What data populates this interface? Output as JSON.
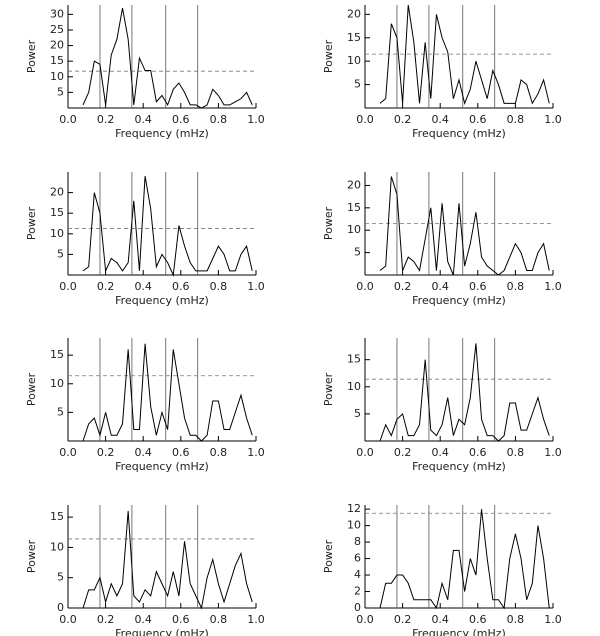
{
  "chart_data": [
    {
      "type": "line",
      "x_label": "Frequency (mHz)",
      "y_label": "Power",
      "color": "#000000",
      "x": [
        0.08,
        0.11,
        0.14,
        0.17,
        0.2,
        0.23,
        0.26,
        0.29,
        0.32,
        0.35,
        0.38,
        0.41,
        0.44,
        0.47,
        0.5,
        0.53,
        0.56,
        0.59,
        0.62,
        0.65,
        0.68,
        0.71,
        0.74,
        0.77,
        0.8,
        0.83,
        0.86,
        0.89,
        0.92,
        0.95,
        0.98
      ],
      "values": [
        1,
        5,
        15,
        14,
        1,
        17,
        22,
        32,
        22,
        1,
        16,
        12,
        12,
        2,
        4,
        1,
        6,
        8,
        5,
        1,
        1,
        0,
        1,
        6,
        4,
        1,
        1,
        2,
        3,
        5,
        1
      ],
      "xlim": [
        0,
        1
      ],
      "xticks": [
        {
          "value": 0,
          "label": "0.0"
        },
        {
          "value": 0.2,
          "label": "0.2"
        },
        {
          "value": 0.4,
          "label": "0.4"
        },
        {
          "value": 0.6,
          "label": "0.6"
        },
        {
          "value": 0.8,
          "label": "0.8"
        },
        {
          "value": 1,
          "label": "1.0"
        }
      ],
      "ylim": [
        0,
        33
      ],
      "yticks": [
        5,
        10,
        15,
        20,
        25,
        30
      ],
      "vlines": [
        0.17,
        0.34,
        0.52,
        0.69
      ],
      "hline": 11.8
    },
    {
      "type": "line",
      "x_label": "Frequency (mHz)",
      "y_label": "Power",
      "color": "#000000",
      "x": [
        0.08,
        0.11,
        0.14,
        0.17,
        0.2,
        0.23,
        0.26,
        0.29,
        0.32,
        0.35,
        0.38,
        0.41,
        0.44,
        0.47,
        0.5,
        0.53,
        0.56,
        0.59,
        0.62,
        0.65,
        0.68,
        0.71,
        0.74,
        0.77,
        0.8,
        0.83,
        0.86,
        0.89,
        0.92,
        0.95,
        0.98
      ],
      "values": [
        1,
        2,
        18,
        15,
        1,
        22,
        14,
        1,
        14,
        2,
        20,
        15,
        12,
        2,
        6,
        1,
        4,
        10,
        6,
        2,
        8,
        5,
        1,
        1,
        1,
        6,
        5,
        1,
        3,
        6,
        1
      ],
      "xlim": [
        0,
        1
      ],
      "xticks": [
        {
          "value": 0,
          "label": "0.0"
        },
        {
          "value": 0.2,
          "label": "0.2"
        },
        {
          "value": 0.4,
          "label": "0.4"
        },
        {
          "value": 0.6,
          "label": "0.6"
        },
        {
          "value": 0.8,
          "label": "0.8"
        },
        {
          "value": 1,
          "label": "1.0"
        }
      ],
      "ylim": [
        0,
        22
      ],
      "yticks": [
        5,
        10,
        15,
        20
      ],
      "vlines": [
        0.17,
        0.34,
        0.52,
        0.69
      ],
      "hline": 11.5
    },
    {
      "type": "line",
      "x_label": "Frequency (mHz)",
      "y_label": "Power",
      "color": "#000000",
      "x": [
        0.08,
        0.11,
        0.14,
        0.17,
        0.2,
        0.23,
        0.26,
        0.29,
        0.32,
        0.35,
        0.38,
        0.41,
        0.44,
        0.47,
        0.5,
        0.53,
        0.56,
        0.59,
        0.62,
        0.65,
        0.68,
        0.71,
        0.74,
        0.77,
        0.8,
        0.83,
        0.86,
        0.89,
        0.92,
        0.95,
        0.98
      ],
      "values": [
        1,
        2,
        20,
        15,
        1,
        4,
        3,
        1,
        3,
        18,
        1,
        24,
        16,
        2,
        5,
        3,
        0,
        12,
        7,
        3,
        1,
        1,
        1,
        4,
        7,
        5,
        1,
        1,
        5,
        7,
        1
      ],
      "xlim": [
        0,
        1
      ],
      "xticks": [
        {
          "value": 0,
          "label": "0.0"
        },
        {
          "value": 0.2,
          "label": "0.2"
        },
        {
          "value": 0.4,
          "label": "0.4"
        },
        {
          "value": 0.6,
          "label": "0.6"
        },
        {
          "value": 0.8,
          "label": "0.8"
        },
        {
          "value": 1,
          "label": "1.0"
        }
      ],
      "ylim": [
        0,
        25
      ],
      "yticks": [
        5,
        10,
        15,
        20
      ],
      "vlines": [
        0.17,
        0.34,
        0.52,
        0.69
      ],
      "hline": 11.3
    },
    {
      "type": "line",
      "x_label": "Frequency (mHz)",
      "y_label": "Power",
      "color": "#000000",
      "x": [
        0.08,
        0.11,
        0.14,
        0.17,
        0.2,
        0.23,
        0.26,
        0.29,
        0.32,
        0.35,
        0.38,
        0.41,
        0.44,
        0.47,
        0.5,
        0.53,
        0.56,
        0.59,
        0.62,
        0.65,
        0.68,
        0.71,
        0.74,
        0.77,
        0.8,
        0.83,
        0.86,
        0.89,
        0.92,
        0.95,
        0.98
      ],
      "values": [
        1,
        2,
        22,
        18,
        1,
        4,
        3,
        1,
        8,
        15,
        1,
        16,
        3,
        0,
        16,
        2,
        7,
        14,
        4,
        2,
        1,
        0,
        1,
        4,
        7,
        5,
        1,
        1,
        5,
        7,
        1
      ],
      "xlim": [
        0,
        1
      ],
      "xticks": [
        {
          "value": 0,
          "label": "0.0"
        },
        {
          "value": 0.2,
          "label": "0.2"
        },
        {
          "value": 0.4,
          "label": "0.4"
        },
        {
          "value": 0.6,
          "label": "0.6"
        },
        {
          "value": 0.8,
          "label": "0.8"
        },
        {
          "value": 1,
          "label": "1.0"
        }
      ],
      "ylim": [
        0,
        23
      ],
      "yticks": [
        5,
        10,
        15,
        20
      ],
      "vlines": [
        0.17,
        0.34,
        0.52,
        0.69
      ],
      "hline": 11.5
    },
    {
      "type": "line",
      "x_label": "Frequency (mHz)",
      "y_label": "Power",
      "color": "#000000",
      "x": [
        0.08,
        0.11,
        0.14,
        0.17,
        0.2,
        0.23,
        0.26,
        0.29,
        0.32,
        0.35,
        0.38,
        0.41,
        0.44,
        0.47,
        0.5,
        0.53,
        0.56,
        0.59,
        0.62,
        0.65,
        0.68,
        0.71,
        0.74,
        0.77,
        0.8,
        0.83,
        0.86,
        0.89,
        0.92,
        0.95,
        0.98
      ],
      "values": [
        0,
        3,
        4,
        1,
        5,
        1,
        1,
        3,
        16,
        2,
        2,
        17,
        6,
        1,
        5,
        2,
        16,
        10,
        4,
        1,
        1,
        0,
        1,
        7,
        7,
        2,
        2,
        5,
        8,
        4,
        1
      ],
      "xlim": [
        0,
        1
      ],
      "xticks": [
        {
          "value": 0,
          "label": "0.0"
        },
        {
          "value": 0.2,
          "label": "0.2"
        },
        {
          "value": 0.4,
          "label": "0.4"
        },
        {
          "value": 0.6,
          "label": "0.6"
        },
        {
          "value": 0.8,
          "label": "0.8"
        },
        {
          "value": 1,
          "label": "1.0"
        }
      ],
      "ylim": [
        0,
        18
      ],
      "yticks": [
        5,
        10,
        15
      ],
      "vlines": [
        0.17,
        0.34,
        0.52,
        0.69
      ],
      "hline": 11.4
    },
    {
      "type": "line",
      "x_label": "Frequency (mHz)",
      "y_label": "Power",
      "color": "#000000",
      "x": [
        0.08,
        0.11,
        0.14,
        0.17,
        0.2,
        0.23,
        0.26,
        0.29,
        0.32,
        0.35,
        0.38,
        0.41,
        0.44,
        0.47,
        0.5,
        0.53,
        0.56,
        0.59,
        0.62,
        0.65,
        0.68,
        0.71,
        0.74,
        0.77,
        0.8,
        0.83,
        0.86,
        0.89,
        0.92,
        0.95,
        0.98
      ],
      "values": [
        0,
        3,
        1,
        4,
        5,
        1,
        1,
        3,
        15,
        2,
        1,
        3,
        8,
        1,
        4,
        3,
        8,
        18,
        4,
        1,
        1,
        0,
        1,
        7,
        7,
        2,
        2,
        5,
        8,
        4,
        1
      ],
      "xlim": [
        0,
        1
      ],
      "xticks": [
        {
          "value": 0,
          "label": "0.0"
        },
        {
          "value": 0.2,
          "label": "0.2"
        },
        {
          "value": 0.4,
          "label": "0.4"
        },
        {
          "value": 0.6,
          "label": "0.6"
        },
        {
          "value": 0.8,
          "label": "0.8"
        },
        {
          "value": 1,
          "label": "1.0"
        }
      ],
      "ylim": [
        0,
        19
      ],
      "yticks": [
        5,
        10,
        15
      ],
      "vlines": [
        0.17,
        0.34,
        0.52,
        0.69
      ],
      "hline": 11.4
    },
    {
      "type": "line",
      "x_label": "Frequency (mHz)",
      "y_label": "Power",
      "color": "#000000",
      "x": [
        0.08,
        0.11,
        0.14,
        0.17,
        0.2,
        0.23,
        0.26,
        0.29,
        0.32,
        0.35,
        0.38,
        0.41,
        0.44,
        0.47,
        0.5,
        0.53,
        0.56,
        0.59,
        0.62,
        0.65,
        0.68,
        0.71,
        0.74,
        0.77,
        0.8,
        0.83,
        0.86,
        0.89,
        0.92,
        0.95,
        0.98
      ],
      "values": [
        0,
        3,
        3,
        5,
        1,
        4,
        2,
        4,
        16,
        2,
        1,
        3,
        2,
        6,
        4,
        2,
        6,
        2,
        11,
        4,
        2,
        0,
        5,
        8,
        4,
        1,
        4,
        7,
        9,
        4,
        1
      ],
      "xlim": [
        0,
        1
      ],
      "xticks": [
        {
          "value": 0,
          "label": "0.0"
        },
        {
          "value": 0.2,
          "label": "0.2"
        },
        {
          "value": 0.4,
          "label": "0.4"
        },
        {
          "value": 0.6,
          "label": "0.6"
        },
        {
          "value": 0.8,
          "label": "0.8"
        },
        {
          "value": 1,
          "label": "1.0"
        }
      ],
      "ylim": [
        0,
        17
      ],
      "yticks": [
        0,
        5,
        10,
        15
      ],
      "vlines": [
        0.17,
        0.34,
        0.52,
        0.69
      ],
      "hline": 11.4
    },
    {
      "type": "line",
      "x_label": "Frequency (mHz)",
      "y_label": "Power",
      "color": "#000000",
      "x": [
        0.08,
        0.11,
        0.14,
        0.17,
        0.2,
        0.23,
        0.26,
        0.29,
        0.32,
        0.35,
        0.38,
        0.41,
        0.44,
        0.47,
        0.5,
        0.53,
        0.56,
        0.59,
        0.62,
        0.65,
        0.68,
        0.71,
        0.74,
        0.77,
        0.8,
        0.83,
        0.86,
        0.89,
        0.92,
        0.95,
        0.98
      ],
      "values": [
        0,
        3,
        3,
        4,
        4,
        3,
        1,
        1,
        1,
        1,
        0,
        3,
        1,
        7,
        7,
        2,
        6,
        4,
        12,
        6,
        1,
        1,
        0,
        6,
        9,
        6,
        1,
        3,
        10,
        6,
        0
      ],
      "xlim": [
        0,
        1
      ],
      "xticks": [
        {
          "value": 0,
          "label": "0.0"
        },
        {
          "value": 0.2,
          "label": "0.2"
        },
        {
          "value": 0.4,
          "label": "0.4"
        },
        {
          "value": 0.6,
          "label": "0.6"
        },
        {
          "value": 0.8,
          "label": "0.8"
        },
        {
          "value": 1,
          "label": "1.0"
        }
      ],
      "ylim": [
        0,
        12.5
      ],
      "yticks": [
        0,
        2,
        4,
        6,
        8,
        10,
        12
      ],
      "vlines": [
        0.17,
        0.34,
        0.52,
        0.69
      ],
      "hline": 11.5
    }
  ]
}
